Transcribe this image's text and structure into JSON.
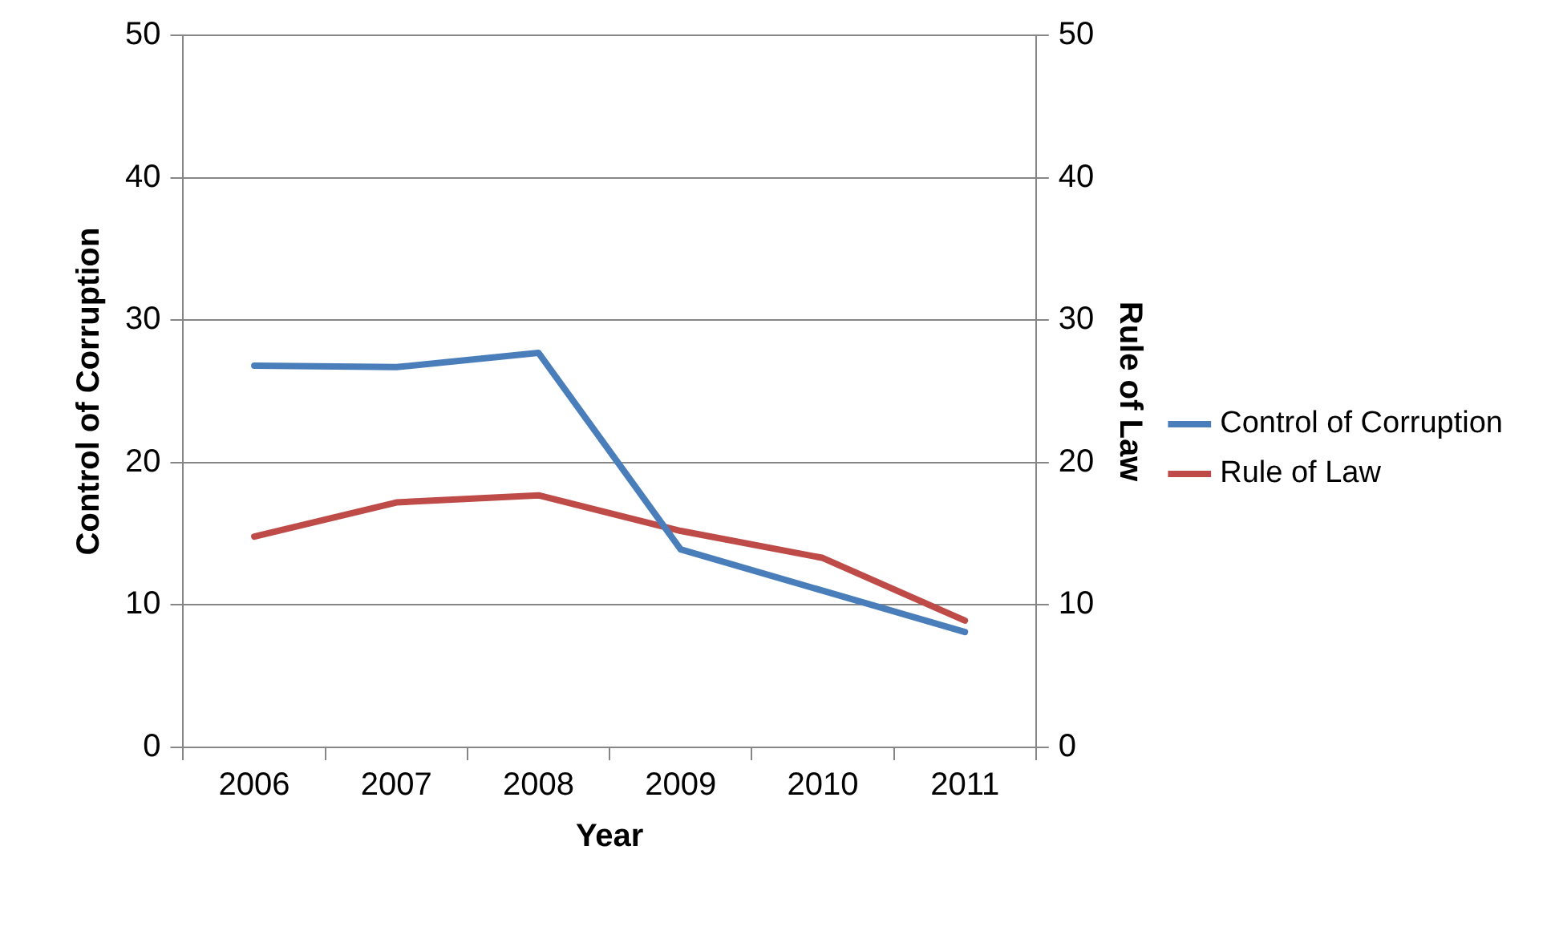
{
  "chart_data": {
    "type": "line",
    "xlabel": "Year",
    "ylabel": "Control of Corruption",
    "y2label": "Rule of Law",
    "categories": [
      "2006",
      "2007",
      "2008",
      "2009",
      "2010",
      "2011"
    ],
    "series": [
      {
        "name": "Control of Corruption",
        "color": "#4a7ebb",
        "values": [
          26.8,
          26.7,
          27.7,
          13.9,
          11.0,
          8.1
        ]
      },
      {
        "name": "Rule of Law",
        "color": "#be4b48",
        "values": [
          14.8,
          17.2,
          17.7,
          15.2,
          13.3,
          8.9
        ],
        "axis": "y2"
      }
    ],
    "ylim": [
      0,
      50
    ],
    "yticks": [
      0,
      10,
      20,
      30,
      40,
      50
    ],
    "y2lim": [
      0,
      50
    ],
    "y2ticks": [
      0,
      10,
      20,
      30,
      40,
      50
    ],
    "grid": "y",
    "legend": "right",
    "marker": "none",
    "line_style": "solid"
  }
}
